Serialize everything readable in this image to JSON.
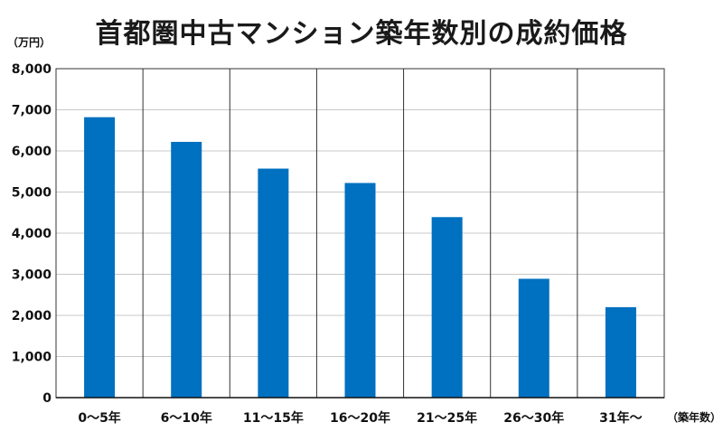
{
  "chart_data": {
    "type": "bar",
    "title": "首都圏中古マンション築年数別の成約価格",
    "ylabel": "（万円）",
    "xlabel": "（築年数）",
    "categories": [
      "0～5年",
      "6～10年",
      "11～15年",
      "16～20年",
      "21～25年",
      "26～30年",
      "31年～"
    ],
    "values": [
      6820,
      6220,
      5570,
      5220,
      4390,
      2890,
      2200
    ],
    "ylim": [
      0,
      8000
    ],
    "yticks": [
      "0",
      "1,000",
      "2,000",
      "3,000",
      "4,000",
      "5,000",
      "6,000",
      "7,000",
      "8,000"
    ],
    "grid": true,
    "bar_color": "#0070c0"
  }
}
